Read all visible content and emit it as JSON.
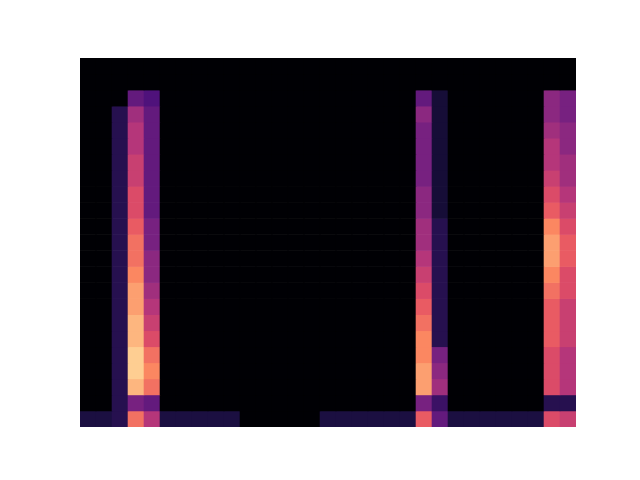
{
  "chart_data": {
    "type": "heatmap",
    "xlim": [
      0,
      31
    ],
    "ylim": [
      0,
      23
    ],
    "tick_labels": false,
    "value_range": [
      0,
      1
    ],
    "cells": [
      [
        0.12,
        0.12,
        0.15,
        0.7,
        0.5,
        0.12,
        0.12,
        0.12,
        0.12,
        0.12,
        0,
        0,
        0,
        0,
        0,
        0.12,
        0.12,
        0.12,
        0.12,
        0.12,
        0.12,
        0.65,
        0.3,
        0.12,
        0.12,
        0.12,
        0.12,
        0.12,
        0.12,
        0.6,
        0.55
      ],
      [
        0,
        0,
        0.15,
        0.35,
        0.3,
        0,
        0,
        0,
        0,
        0,
        0,
        0,
        0,
        0,
        0,
        0,
        0,
        0,
        0,
        0,
        0,
        0.35,
        0.2,
        0,
        0,
        0,
        0,
        0,
        0,
        0.15,
        0.15
      ],
      [
        0,
        0,
        0.15,
        0.85,
        0.7,
        0,
        0,
        0,
        0,
        0,
        0,
        0,
        0,
        0,
        0,
        0,
        0,
        0,
        0,
        0,
        0,
        0.8,
        0.45,
        0,
        0,
        0,
        0,
        0,
        0,
        0.6,
        0.5
      ],
      [
        0,
        0,
        0.15,
        0.9,
        0.75,
        0,
        0,
        0,
        0,
        0,
        0,
        0,
        0,
        0,
        0,
        0,
        0,
        0,
        0,
        0,
        0,
        0.8,
        0.4,
        0,
        0,
        0,
        0,
        0,
        0,
        0.6,
        0.5
      ],
      [
        0,
        0,
        0.15,
        0.9,
        0.7,
        0,
        0,
        0,
        0,
        0,
        0,
        0,
        0,
        0,
        0,
        0,
        0,
        0,
        0,
        0,
        0,
        0.75,
        0.35,
        0,
        0,
        0,
        0,
        0,
        0,
        0.6,
        0.5
      ],
      [
        0,
        0,
        0.15,
        0.85,
        0.6,
        0,
        0,
        0,
        0,
        0,
        0,
        0,
        0,
        0,
        0,
        0,
        0,
        0,
        0,
        0,
        0,
        0.75,
        0.15,
        0,
        0,
        0,
        0,
        0,
        0,
        0.65,
        0.55
      ],
      [
        0,
        0,
        0.15,
        0.85,
        0.55,
        0,
        0,
        0,
        0,
        0,
        0,
        0,
        0,
        0,
        0,
        0,
        0,
        0,
        0,
        0,
        0,
        0.7,
        0.15,
        0,
        0,
        0,
        0,
        0,
        0,
        0.65,
        0.55
      ],
      [
        0,
        0,
        0.15,
        0.8,
        0.5,
        0,
        0,
        0,
        0,
        0,
        0,
        0,
        0,
        0,
        0,
        0,
        0,
        0,
        0,
        0,
        0,
        0.65,
        0.15,
        0,
        0,
        0,
        0,
        0,
        0,
        0.65,
        0.55
      ],
      [
        0,
        0,
        0.15,
        0.8,
        0.45,
        0,
        0,
        0,
        0,
        0,
        0,
        0,
        0,
        0,
        0,
        0,
        0,
        0,
        0,
        0,
        0,
        0.6,
        0.15,
        0,
        0,
        0,
        0,
        0,
        0,
        0.7,
        0.6
      ],
      [
        0,
        0,
        0.15,
        0.75,
        0.4,
        0,
        0,
        0,
        0,
        0,
        0,
        0,
        0,
        0,
        0,
        0,
        0,
        0,
        0,
        0,
        0,
        0.55,
        0.15,
        0,
        0,
        0,
        0,
        0,
        0,
        0.75,
        0.6
      ],
      [
        0,
        0,
        0.15,
        0.7,
        0.4,
        0,
        0,
        0,
        0,
        0,
        0,
        0,
        0,
        0,
        0,
        0,
        0,
        0,
        0,
        0,
        0,
        0.5,
        0.15,
        0,
        0,
        0,
        0,
        0,
        0,
        0.8,
        0.65
      ],
      [
        0,
        0,
        0.15,
        0.7,
        0.35,
        0,
        0,
        0,
        0,
        0,
        0,
        0,
        0,
        0,
        0,
        0,
        0,
        0,
        0,
        0,
        0,
        0.45,
        0.15,
        0,
        0,
        0,
        0,
        0,
        0,
        0.8,
        0.65
      ],
      [
        0,
        0,
        0.15,
        0.65,
        0.35,
        0,
        0,
        0,
        0,
        0,
        0,
        0,
        0,
        0,
        0,
        0,
        0,
        0,
        0,
        0,
        0,
        0.45,
        0.15,
        0,
        0,
        0,
        0,
        0,
        0,
        0.75,
        0.6
      ],
      [
        0,
        0,
        0.15,
        0.6,
        0.3,
        0,
        0,
        0,
        0,
        0,
        0,
        0,
        0,
        0,
        0,
        0,
        0,
        0,
        0,
        0,
        0,
        0.4,
        0.1,
        0,
        0,
        0,
        0,
        0,
        0,
        0.65,
        0.55
      ],
      [
        0,
        0,
        0.15,
        0.6,
        0.3,
        0,
        0,
        0,
        0,
        0,
        0,
        0,
        0,
        0,
        0,
        0,
        0,
        0,
        0,
        0,
        0,
        0.4,
        0.1,
        0,
        0,
        0,
        0,
        0,
        0,
        0.6,
        0.5
      ],
      [
        0,
        0,
        0.15,
        0.55,
        0.3,
        0,
        0,
        0,
        0,
        0,
        0,
        0,
        0,
        0,
        0,
        0,
        0,
        0,
        0,
        0,
        0,
        0.35,
        0.1,
        0,
        0,
        0,
        0,
        0,
        0,
        0.55,
        0.45
      ],
      [
        0,
        0,
        0.15,
        0.55,
        0.3,
        0,
        0,
        0,
        0,
        0,
        0,
        0,
        0,
        0,
        0,
        0,
        0,
        0,
        0,
        0,
        0,
        0.35,
        0.1,
        0,
        0,
        0,
        0,
        0,
        0,
        0.5,
        0.45
      ],
      [
        0,
        0,
        0.15,
        0.5,
        0.3,
        0,
        0,
        0,
        0,
        0,
        0,
        0,
        0,
        0,
        0,
        0,
        0,
        0,
        0,
        0,
        0,
        0.35,
        0.1,
        0,
        0,
        0,
        0,
        0,
        0,
        0.5,
        0.4
      ],
      [
        0,
        0,
        0.15,
        0.5,
        0.3,
        0,
        0,
        0,
        0,
        0,
        0,
        0,
        0,
        0,
        0,
        0,
        0,
        0,
        0,
        0,
        0,
        0.35,
        0.1,
        0,
        0,
        0,
        0,
        0,
        0,
        0.45,
        0.4
      ],
      [
        0,
        0,
        0.15,
        0.45,
        0.3,
        0,
        0,
        0,
        0,
        0,
        0,
        0,
        0,
        0,
        0,
        0,
        0,
        0,
        0,
        0,
        0,
        0.4,
        0.1,
        0,
        0,
        0,
        0,
        0,
        0,
        0.4,
        0.35
      ],
      [
        0,
        0,
        0,
        0.3,
        0.25,
        0,
        0,
        0,
        0,
        0,
        0,
        0,
        0,
        0,
        0,
        0,
        0,
        0,
        0,
        0,
        0,
        0.3,
        0.1,
        0,
        0,
        0,
        0,
        0,
        0,
        0.4,
        0.35
      ],
      [
        0,
        0,
        0,
        0,
        0,
        0,
        0,
        0,
        0,
        0,
        0,
        0,
        0,
        0,
        0,
        0,
        0,
        0,
        0,
        0,
        0,
        0,
        0,
        0,
        0,
        0,
        0,
        0,
        0,
        0,
        0
      ],
      [
        0,
        0,
        0,
        0,
        0,
        0,
        0,
        0,
        0,
        0,
        0,
        0,
        0,
        0,
        0,
        0,
        0,
        0,
        0,
        0,
        0,
        0,
        0,
        0,
        0,
        0,
        0,
        0,
        0,
        0,
        0
      ]
    ]
  }
}
